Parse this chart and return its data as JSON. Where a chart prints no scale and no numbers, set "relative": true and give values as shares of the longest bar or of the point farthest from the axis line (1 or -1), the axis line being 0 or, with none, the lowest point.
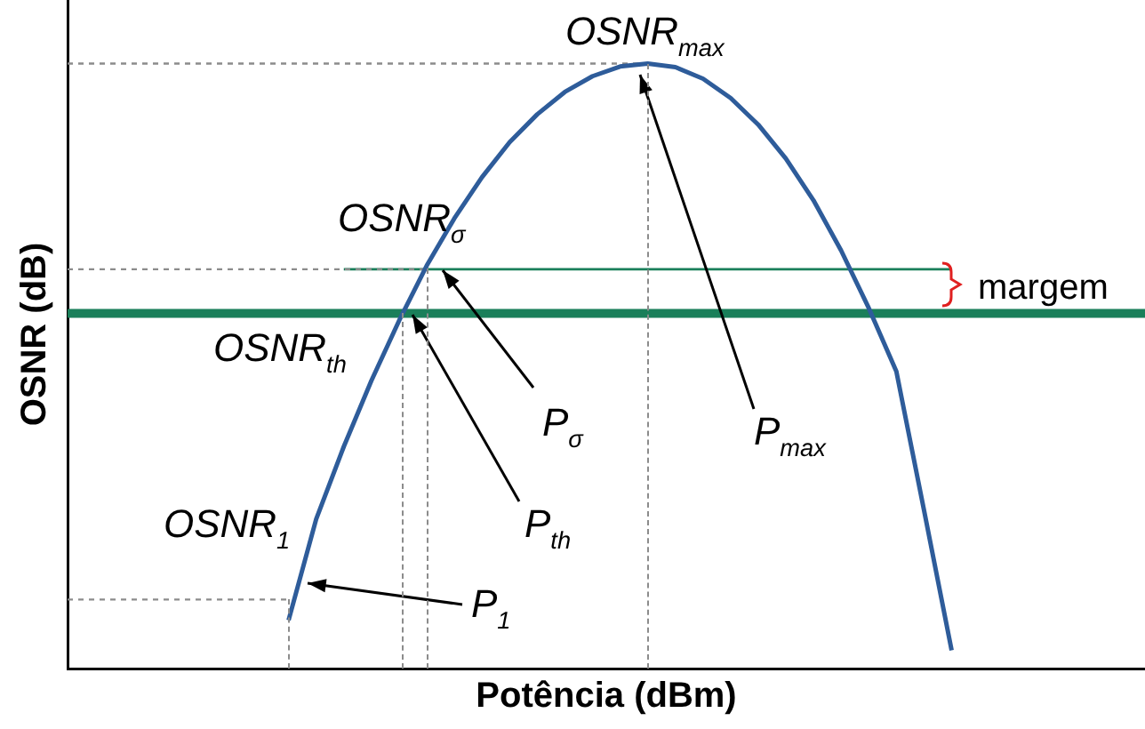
{
  "chart_data": {
    "type": "line",
    "relative": true,
    "xlabel": "Potência (dBm)",
    "ylabel": "OSNR (dB)",
    "marker": "none",
    "grid": false,
    "legend": false,
    "categories": [
      null,
      null,
      null,
      null,
      null,
      null,
      null,
      null,
      null,
      null,
      null,
      null,
      null,
      null,
      null,
      null,
      null,
      null,
      null,
      null,
      null,
      null,
      null,
      null,
      null,
      null,
      null,
      null,
      null,
      null,
      null,
      null,
      null,
      null,
      null,
      null,
      null,
      null,
      null,
      null
    ],
    "series": [
      {
        "color": "#2e5c9a",
        "line_style": "solid",
        "values": [
          null,
          null,
          null,
          null,
          null,
          null,
          null,
          null,
          0.08,
          0.247,
          0.367,
          0.476,
          0.575,
          0.666,
          0.744,
          0.812,
          0.87,
          0.916,
          0.953,
          0.979,
          0.995,
          1,
          0.994,
          0.975,
          0.943,
          0.899,
          0.843,
          0.774,
          0.691,
          0.596,
          0.491,
          0.262,
          0.03,
          null,
          null,
          null,
          null,
          null,
          null,
          null
        ]
      },
      {
        "color": "#8c8c8c",
        "line_style": "dashed",
        "values": [
          1,
          1,
          1,
          1,
          1,
          1,
          1,
          1,
          1,
          1,
          1,
          1,
          1,
          1,
          1,
          1,
          1,
          1,
          1,
          1,
          1,
          1,
          null,
          null,
          null,
          null,
          null,
          null,
          null,
          null,
          null,
          null,
          null,
          null,
          null,
          null,
          null,
          null,
          null,
          null
        ]
      },
      {
        "color": "#8c8c8c",
        "line_style": "dashed",
        "values": [
          0.66,
          0.66,
          0.66,
          0.66,
          0.66,
          0.66,
          0.66,
          0.66,
          0.66,
          0.66,
          0.66,
          0.66,
          0.66,
          0.66,
          null,
          null,
          null,
          null,
          null,
          null,
          null,
          null,
          null,
          null,
          null,
          null,
          null,
          null,
          null,
          null,
          null,
          null,
          null,
          null,
          null,
          null,
          null,
          null,
          null,
          null
        ]
      },
      {
        "color": "#8c8c8c",
        "line_style": "dashed",
        "values": [
          0.114,
          0.114,
          0.114,
          0.114,
          0.114,
          0.114,
          0.114,
          0.114,
          0.114,
          null,
          null,
          null,
          null,
          null,
          null,
          null,
          null,
          null,
          null,
          null,
          null,
          null,
          null,
          null,
          null,
          null,
          null,
          null,
          null,
          null,
          null,
          null,
          null,
          null,
          null,
          null,
          null,
          null,
          null,
          null
        ]
      },
      {
        "color": "#1a7f5a",
        "line_style": "solid",
        "values": [
          null,
          null,
          null,
          null,
          null,
          null,
          null,
          null,
          null,
          null,
          0.66,
          0.66,
          0.66,
          0.66,
          0.66,
          0.66,
          0.66,
          0.66,
          0.66,
          0.66,
          0.66,
          0.66,
          0.66,
          0.66,
          0.66,
          0.66,
          0.66,
          0.66,
          0.66,
          0.66,
          0.66,
          0.66,
          0.66,
          null,
          null,
          null,
          null,
          null,
          null,
          null
        ]
      }
    ],
    "ref_lines": [
      {
        "axis": "y",
        "value": 0.587,
        "color": "#1a7f5a"
      }
    ],
    "annotations": [
      "OSNR$_{max}$",
      "OSNR$_{σ}$",
      "OSNR$_{th}$",
      "OSNR$_{1}$",
      "P$_{σ}$",
      "P$_{th}$",
      "P$_{max}$",
      "P$_{1}$",
      "margem"
    ]
  }
}
